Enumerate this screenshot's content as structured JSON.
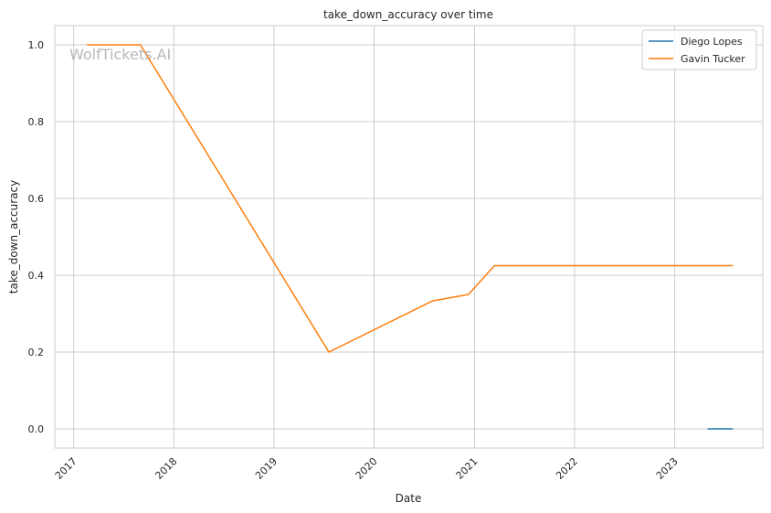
{
  "chart_data": {
    "type": "line",
    "title": "take_down_accuracy over time",
    "xlabel": "Date",
    "ylabel": "take_down_accuracy",
    "watermark": "WolfTickets.AI",
    "x_ticks": [
      "2017",
      "2018",
      "2019",
      "2020",
      "2021",
      "2022",
      "2023"
    ],
    "y_ticks": [
      "0.0",
      "0.2",
      "0.4",
      "0.6",
      "0.8",
      "1.0"
    ],
    "xlim": [
      "2016-10-24",
      "2023-11-18"
    ],
    "ylim": [
      -0.05,
      1.05
    ],
    "grid": true,
    "legend_position": "top-right",
    "series": [
      {
        "name": "Diego Lopes",
        "color": "#1f77b4",
        "points": [
          {
            "x": "2023-05-01",
            "y": 0.0
          },
          {
            "x": "2023-08-01",
            "y": 0.0
          }
        ]
      },
      {
        "name": "Gavin Tucker",
        "color": "#ff7f0e",
        "points": [
          {
            "x": "2017-02-18",
            "y": 1.0
          },
          {
            "x": "2017-09-01",
            "y": 1.0
          },
          {
            "x": "2019-07-20",
            "y": 0.2
          },
          {
            "x": "2020-08-01",
            "y": 0.333
          },
          {
            "x": "2020-12-10",
            "y": 0.35
          },
          {
            "x": "2021-03-15",
            "y": 0.425
          },
          {
            "x": "2023-08-01",
            "y": 0.425
          }
        ]
      }
    ]
  }
}
